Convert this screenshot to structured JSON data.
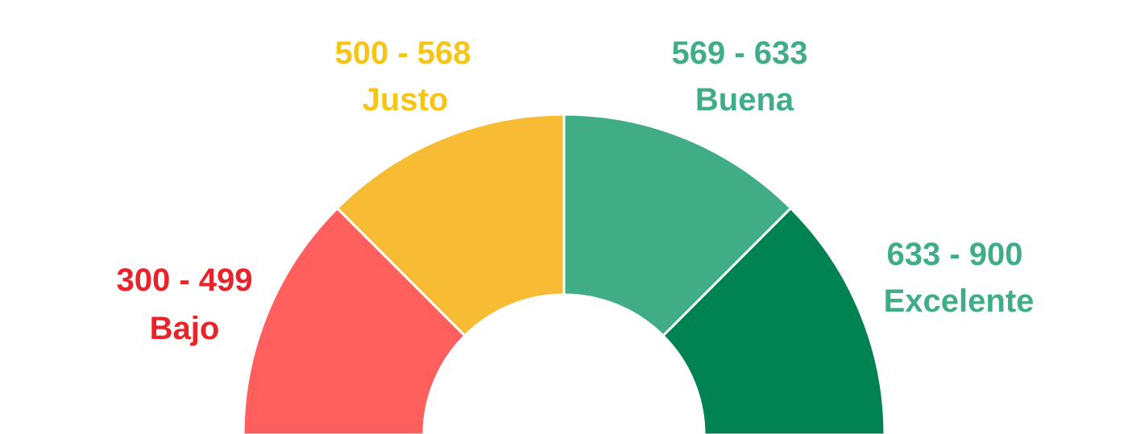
{
  "chart_data": {
    "type": "pie",
    "variant": "half-donut gauge",
    "grid": false,
    "legend": "none",
    "segments": [
      {
        "range": "300 - 499",
        "label": "Bajo",
        "value": 1,
        "color": "#FF5F5D",
        "label_color": "#E8232A"
      },
      {
        "range": "500 - 568",
        "label": "Justo",
        "value": 1,
        "color": "#F7BC33",
        "label_color": "#F5C518"
      },
      {
        "range": "569 - 633",
        "label": "Buena",
        "value": 1,
        "color": "#41AD86",
        "label_color": "#41AD86"
      },
      {
        "range": "633 - 900",
        "label": "Excelente",
        "value": 1,
        "color": "#008253",
        "label_color": "#41AD86"
      }
    ]
  }
}
